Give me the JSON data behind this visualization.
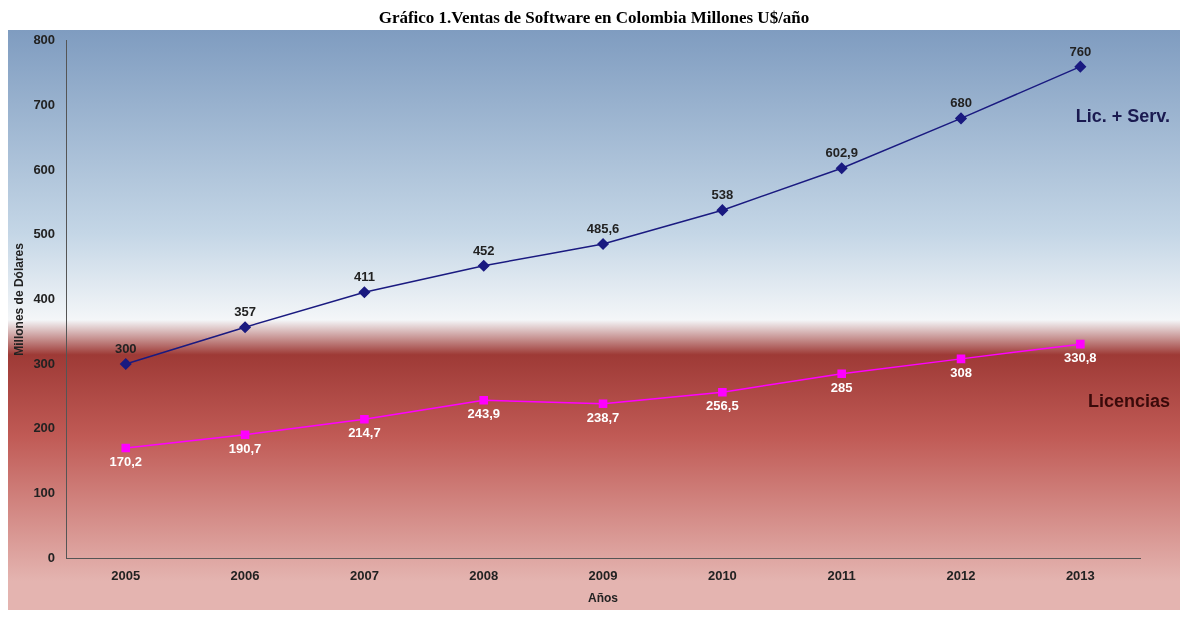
{
  "chart_data": {
    "type": "line",
    "title": "Gráfico 1.Ventas de Software en Colombia Millones U$/año",
    "xlabel": "Años",
    "ylabel": "Millones de Dólares",
    "categories": [
      "2005",
      "2006",
      "2007",
      "2008",
      "2009",
      "2010",
      "2011",
      "2012",
      "2013"
    ],
    "series": [
      {
        "name": "Lic. + Serv.",
        "color": "#1a1a80",
        "marker": "diamond",
        "values": [
          300,
          357,
          411,
          452,
          485.6,
          538,
          602.9,
          680,
          760
        ],
        "value_labels": [
          "300",
          "357",
          "411",
          "452",
          "485,6",
          "538",
          "602,9",
          "680",
          "760"
        ]
      },
      {
        "name": "Licencias",
        "color": "#ff00ff",
        "marker": "square",
        "values": [
          170.2,
          190.7,
          214.7,
          243.9,
          238.7,
          256.5,
          285,
          308,
          330.8
        ],
        "value_labels": [
          "170,2",
          "190,7",
          "214,7",
          "243,9",
          "238,7",
          "256,5",
          "285",
          "308",
          "330,8"
        ]
      }
    ],
    "ylim": [
      0,
      800
    ],
    "yticks": [
      0,
      100,
      200,
      300,
      400,
      500,
      600,
      700,
      800
    ],
    "grid": false,
    "legend": false
  }
}
